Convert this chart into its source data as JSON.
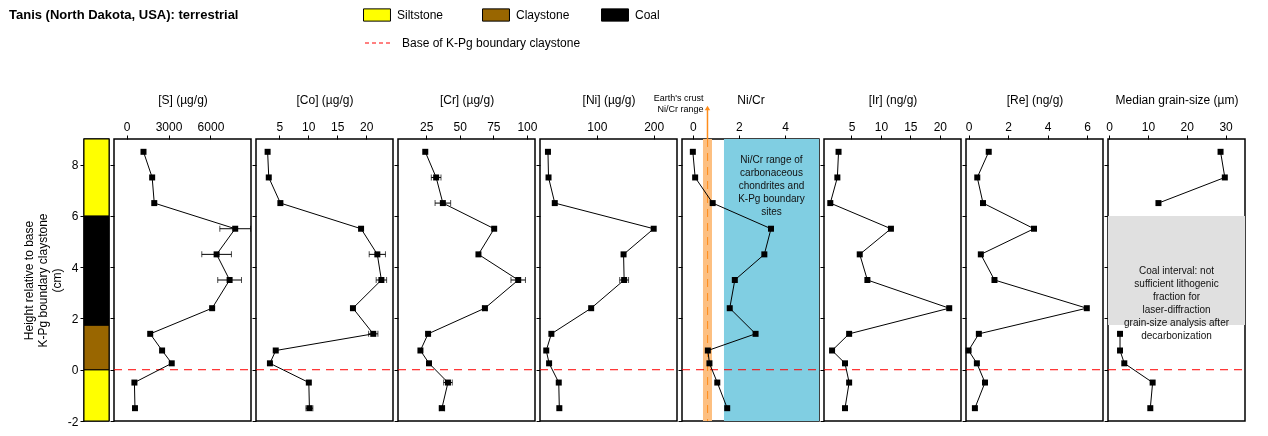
{
  "chart_data": [
    {
      "type": "bar",
      "title": "Tanis (North Dakota, USA): terrestrial",
      "ylabel": "Height relative to base K-Pg boundary claystone (cm)",
      "categories": [
        null
      ],
      "ylim": [
        -2,
        9
      ],
      "yticks": [
        -2,
        0,
        2,
        4,
        6,
        8
      ],
      "legend": "top",
      "stacked": true,
      "series": [
        {
          "name": "Siltstone",
          "color": "#ffff00",
          "values": [
            -2
          ]
        },
        {
          "name": "Claystone",
          "color": "#996600",
          "values": [
            1.74
          ]
        },
        {
          "name": "Coal",
          "color": "#000000",
          "values": [
            4.26
          ]
        },
        {
          "color": "#ffff00",
          "values": [
            3
          ]
        }
      ]
    },
    {
      "type": "line",
      "xlabel": "[S] (µg/g)",
      "xlim": [
        -900,
        8900
      ],
      "xticks": [
        0,
        3000,
        6000
      ],
      "ylim": [
        -2,
        9
      ],
      "yticks": [
        -2,
        0,
        2,
        4,
        6,
        8
      ],
      "tick_labels": "x",
      "marker": "square",
      "line_style": "solid",
      "ref_lines": [
        {
          "axis": "y",
          "value": 0,
          "label": "Base of K-Pg boundary claystone",
          "color": "#ff0000",
          "line_style": "dashed"
        }
      ],
      "series": [
        {
          "color": "#000000",
          "x": [
            1210,
            1830,
            1980,
            7770,
            6440,
            7370,
            6120,
            1690,
            2540,
            3230,
            560,
            600
          ],
          "values": [
            8.5,
            7.5,
            6.5,
            5.5,
            4.5,
            3.5,
            2.4,
            1.4,
            0.75,
            0.25,
            -0.5,
            -1.5
          ],
          "xerrors": [
            null,
            null,
            null,
            1100,
            1060,
            850,
            null,
            null,
            null,
            null,
            null,
            null
          ]
        }
      ]
    },
    {
      "type": "line",
      "xlabel": "[Co] (µg/g)",
      "xlim": [
        1,
        24.6
      ],
      "xticks": [
        5,
        10,
        15,
        20
      ],
      "ylim": [
        -2,
        9
      ],
      "yticks": [
        -2,
        0,
        2,
        4,
        6,
        8
      ],
      "tick_labels": "x",
      "marker": "square",
      "line_style": "solid",
      "ref_lines": [
        {
          "axis": "y",
          "value": 0,
          "color": "#ff0000",
          "line_style": "dashed"
        }
      ],
      "series": [
        {
          "color": "#000000",
          "x": [
            3.0,
            3.2,
            5.2,
            19.1,
            21.9,
            22.6,
            17.7,
            21.2,
            4.4,
            3.4,
            10.1,
            10.2
          ],
          "values": [
            8.5,
            7.5,
            6.5,
            5.5,
            4.5,
            3.5,
            2.4,
            1.4,
            0.75,
            0.25,
            -0.5,
            -1.5
          ],
          "xerrors": [
            null,
            null,
            null,
            null,
            1.4,
            0.9,
            null,
            0.8,
            null,
            null,
            null,
            0.6
          ]
        }
      ]
    },
    {
      "type": "line",
      "xlabel": "[Cr] (µg/g)",
      "xlim": [
        4,
        106
      ],
      "xticks": [
        25,
        50,
        75,
        100
      ],
      "ylim": [
        -2,
        9
      ],
      "yticks": [
        -2,
        0,
        2,
        4,
        6,
        8
      ],
      "tick_labels": "x",
      "marker": "square",
      "line_style": "solid",
      "ref_lines": [
        {
          "axis": "y",
          "value": 0,
          "color": "#ff0000",
          "line_style": "dashed"
        }
      ],
      "series": [
        {
          "color": "#000000",
          "x": [
            24.3,
            32.4,
            37.4,
            75.6,
            63.9,
            93.5,
            68.7,
            26.4,
            20.7,
            27.1,
            41.2,
            36.7
          ],
          "values": [
            8.5,
            7.5,
            6.5,
            5.5,
            4.5,
            3.5,
            2.4,
            1.4,
            0.75,
            0.25,
            -0.5,
            -1.5
          ],
          "xerrors": [
            null,
            3.6,
            5.8,
            null,
            null,
            5.4,
            1.5,
            null,
            null,
            null,
            3.2,
            2
          ]
        }
      ]
    },
    {
      "type": "line",
      "xlabel": "[Ni] (µg/g)",
      "xlim": [
        0,
        241
      ],
      "xticks": [
        100,
        200
      ],
      "ylim": [
        -2,
        9
      ],
      "yticks": [
        -2,
        0,
        2,
        4,
        6,
        8
      ],
      "tick_labels": "x",
      "marker": "square",
      "line_style": "solid",
      "ref_lines": [
        {
          "axis": "y",
          "value": 0,
          "color": "#ff0000",
          "line_style": "dashed"
        }
      ],
      "series": [
        {
          "color": "#000000",
          "x": [
            14,
            15,
            26,
            200,
            147,
            148,
            90,
            20,
            11,
            16,
            33,
            34
          ],
          "values": [
            8.5,
            7.5,
            6.5,
            5.5,
            4.5,
            3.5,
            2.4,
            1.4,
            0.75,
            0.25,
            -0.5,
            -1.5
          ],
          "xerrors": [
            null,
            null,
            null,
            null,
            null,
            7.8,
            null,
            null,
            null,
            null,
            null,
            null
          ]
        }
      ]
    },
    {
      "type": "line",
      "xlabel": "Ni/Cr",
      "xlim": [
        -0.47,
        5.47
      ],
      "xticks": [
        0,
        2,
        4
      ],
      "ylim": [
        -2,
        9
      ],
      "yticks": [
        -2,
        0,
        2,
        4,
        6,
        8
      ],
      "tick_labels": "x",
      "marker": "square",
      "line_style": "solid",
      "bands": [
        {
          "axis": "x",
          "from": 0.44,
          "to": 0.83,
          "label": "Earth's crust Ni/Cr range",
          "color": "#fdbf80"
        },
        {
          "axis": "x",
          "from": 1.35,
          "to": 5.47,
          "label": "Ni/Cr range of carbonaceous chondrites and K-Pg boundary sites",
          "color": "#80cee2"
        }
      ],
      "ref_lines": [
        {
          "axis": "y",
          "value": 0,
          "color": "#ff0000",
          "line_style": "dashed"
        },
        {
          "axis": "x",
          "value": 0.64,
          "color": "#ff8c1a",
          "line_style": "dashed"
        }
      ],
      "series": [
        {
          "color": "#000000",
          "x": [
            0,
            0.1,
            0.86,
            3.39,
            3.1,
            1.82,
            1.6,
            2.72,
            0.65,
            0.72,
            1.06,
            1.49
          ],
          "values": [
            8.5,
            7.5,
            6.5,
            5.5,
            4.5,
            3.5,
            2.4,
            1.4,
            0.75,
            0.25,
            -0.5,
            -1.5
          ]
        }
      ]
    },
    {
      "type": "line",
      "xlabel": "[Ir] (ng/g)",
      "xlim": [
        0.33,
        23.6
      ],
      "xticks": [
        5,
        10,
        15,
        20
      ],
      "ylim": [
        -2,
        9
      ],
      "yticks": [
        -2,
        0,
        2,
        4,
        6,
        8
      ],
      "tick_labels": "x",
      "marker": "square",
      "line_style": "solid",
      "ref_lines": [
        {
          "axis": "y",
          "value": 0,
          "color": "#ff0000",
          "line_style": "dashed"
        }
      ],
      "series": [
        {
          "color": "#000000",
          "x": [
            2.8,
            2.6,
            1.4,
            11.7,
            6.4,
            7.7,
            21.6,
            4.6,
            1.7,
            3.9,
            4.6,
            3.9
          ],
          "values": [
            8.5,
            7.5,
            6.5,
            5.5,
            4.5,
            3.5,
            2.4,
            1.4,
            0.75,
            0.25,
            -0.5,
            -1.5
          ]
        }
      ]
    },
    {
      "type": "line",
      "xlabel": "[Re] (ng/g)",
      "xlim": [
        -0.13,
        6.8
      ],
      "xticks": [
        0,
        2,
        4,
        6
      ],
      "ylim": [
        -2,
        9
      ],
      "yticks": [
        -2,
        0,
        2,
        4,
        6,
        8
      ],
      "tick_labels": "x",
      "marker": "square",
      "line_style": "solid",
      "ref_lines": [
        {
          "axis": "y",
          "value": 0,
          "color": "#ff0000",
          "line_style": "dashed"
        }
      ],
      "series": [
        {
          "color": "#000000",
          "x": [
            1.02,
            0.44,
            0.73,
            3.31,
            0.62,
            1.31,
            5.98,
            0.52,
            0,
            0.42,
            0.83,
            0.32
          ],
          "values": [
            8.5,
            7.5,
            6.5,
            5.5,
            4.5,
            3.5,
            2.4,
            1.4,
            0.75,
            0.25,
            -0.5,
            -1.5
          ]
        }
      ]
    },
    {
      "type": "line",
      "xlabel": "Median grain-size (µm)",
      "xlim": [
        -0.3,
        35
      ],
      "xticks": [
        0,
        10,
        20,
        30
      ],
      "ylim": [
        -2,
        9
      ],
      "yticks": [
        -2,
        0,
        2,
        4,
        6,
        8
      ],
      "tick_labels": "x",
      "marker": "square",
      "line_style": "solid",
      "bands": [
        {
          "axis": "y",
          "from": 1.74,
          "to": 6.0,
          "label": "Coal interval: not sufficient lithogenic fraction for laser-diffraction grain-size analysis after decarbonization",
          "color": "#e0e0e0"
        }
      ],
      "ref_lines": [
        {
          "axis": "y",
          "value": 0,
          "color": "#ff0000",
          "line_style": "dashed"
        }
      ],
      "series": [
        {
          "color": "#000000",
          "x": [
            28.7,
            29.8,
            12.7,
            null,
            null,
            null,
            null,
            2.8,
            2.8,
            3.9,
            11.2,
            10.6
          ],
          "values": [
            8.5,
            7.5,
            6.5,
            null,
            null,
            null,
            null,
            1.4,
            0.75,
            0.25,
            -0.5,
            -1.5
          ]
        }
      ]
    }
  ]
}
